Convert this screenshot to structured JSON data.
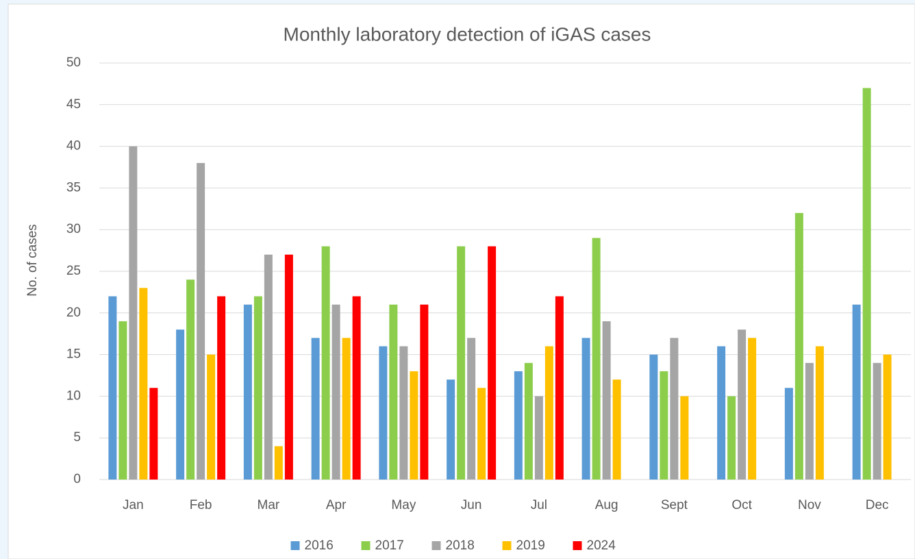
{
  "chart_data": {
    "type": "bar",
    "title": "Monthly laboratory detection of  iGAS cases",
    "y_label": "No. of cases",
    "categories": [
      "Jan",
      "Feb",
      "Mar",
      "Apr",
      "May",
      "Jun",
      "Jul",
      "Aug",
      "Sept",
      "Oct",
      "Nov",
      "Dec"
    ],
    "series": [
      {
        "name": "2016",
        "color": "#5b9bd5",
        "values": [
          22,
          18,
          21,
          17,
          16,
          12,
          13,
          17,
          15,
          16,
          11,
          21
        ]
      },
      {
        "name": "2017",
        "color": "#8cce4c",
        "values": [
          19,
          24,
          22,
          28,
          21,
          28,
          14,
          29,
          13,
          10,
          32,
          47
        ]
      },
      {
        "name": "2018",
        "color": "#a5a5a5",
        "values": [
          40,
          38,
          27,
          21,
          16,
          17,
          10,
          19,
          17,
          18,
          14,
          14
        ]
      },
      {
        "name": "2019",
        "color": "#ffc000",
        "values": [
          23,
          15,
          4,
          17,
          13,
          11,
          16,
          12,
          10,
          17,
          16,
          15
        ]
      },
      {
        "name": "2024",
        "color": "#ff0000",
        "values": [
          11,
          22,
          27,
          22,
          21,
          28,
          22,
          null,
          null,
          null,
          null,
          null
        ]
      }
    ],
    "ylim": [
      0,
      50
    ],
    "yticks": [
      0,
      5,
      10,
      15,
      20,
      25,
      30,
      35,
      40,
      45,
      50
    ],
    "grid": true,
    "legend": "bottom"
  }
}
